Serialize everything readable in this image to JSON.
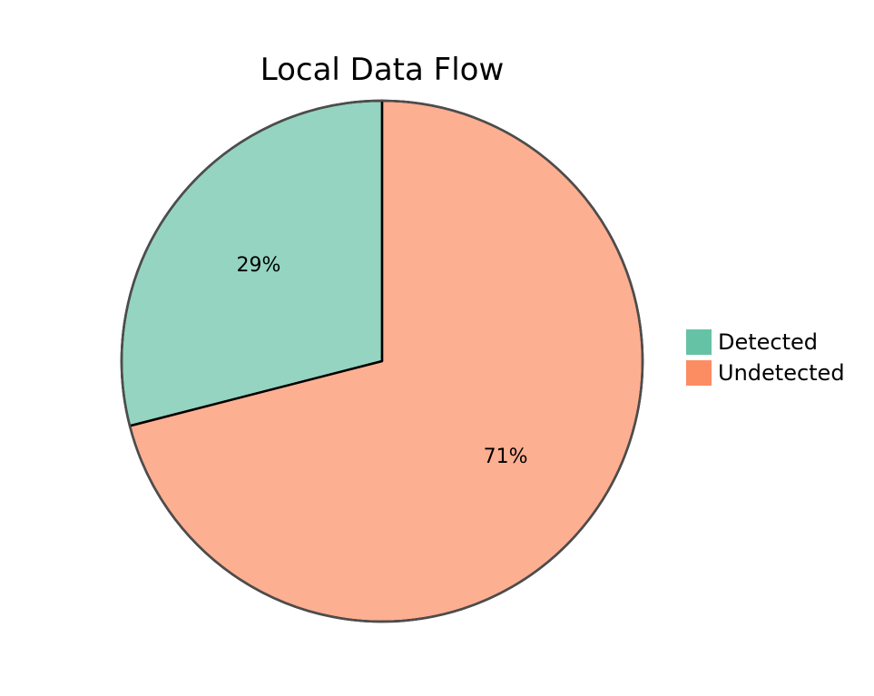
{
  "chart_data": {
    "type": "pie",
    "title": "Local Data Flow",
    "categories": [
      "Detected",
      "Undetected"
    ],
    "values": [
      29,
      71
    ],
    "value_labels": [
      "29%",
      "71%"
    ],
    "unit": "%",
    "colors": {
      "Detected": "#66c2a5",
      "Undetected": "#fc8d62"
    },
    "slice_alpha": 0.7,
    "edge_color": "#000000",
    "start_angle_deg": 90,
    "direction": "counterclockwise",
    "legend_position": "right"
  }
}
